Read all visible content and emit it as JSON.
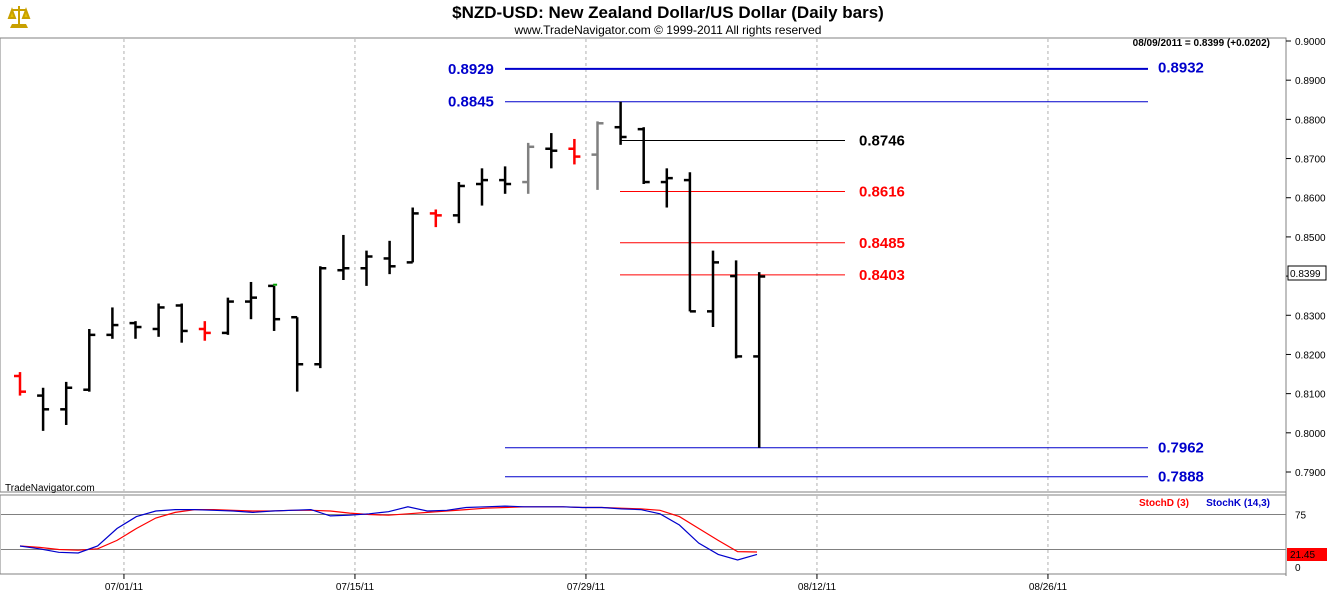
{
  "header": {
    "title": "$NZD-USD:  New Zealand Dollar/US Dollar  (Daily bars)",
    "subtitle": "www.TradeNavigator.com © 1999-2011 All rights reserved",
    "readout": "08/09/2011 = 0.8399 (+0.0202)",
    "brand": "TradeNavigator.com",
    "last_price": "0.8399"
  },
  "colors": {
    "bar_black": "#000000",
    "bar_red": "#ff0000",
    "bar_gray": "#808080",
    "bar_green": "#00a000",
    "level_blue": "#0000cc",
    "level_red": "#ff0000",
    "stoch_d": "#ff0000",
    "stoch_k": "#0000ff"
  },
  "chart_data": [
    {
      "type": "ohlc",
      "ylim": [
        0.787,
        0.9
      ],
      "y_ticks": [
        "0.9000",
        "0.8900",
        "0.8800",
        "0.8700",
        "0.8600",
        "0.8500",
        "0.8400",
        "0.8300",
        "0.8200",
        "0.8100",
        "0.8000",
        "0.7900"
      ],
      "y_tick_values": [
        0.9,
        0.89,
        0.88,
        0.87,
        0.86,
        0.85,
        0.84,
        0.83,
        0.82,
        0.81,
        0.8,
        0.79
      ],
      "x_ticks": [
        "07/01/11",
        "07/15/11",
        "07/29/11",
        "08/12/11",
        "08/26/11"
      ],
      "x_tick_index": [
        4.5,
        14.5,
        24.5,
        34.5,
        44.5
      ],
      "bars": [
        {
          "i": 0,
          "o": 0.8145,
          "h": 0.8155,
          "l": 0.8095,
          "c": 0.8105,
          "color": "red"
        },
        {
          "i": 1,
          "o": 0.8095,
          "h": 0.8115,
          "l": 0.8005,
          "c": 0.806,
          "color": "black"
        },
        {
          "i": 2,
          "o": 0.806,
          "h": 0.813,
          "l": 0.802,
          "c": 0.8115,
          "color": "black"
        },
        {
          "i": 3,
          "o": 0.811,
          "h": 0.8265,
          "l": 0.8105,
          "c": 0.825,
          "color": "black"
        },
        {
          "i": 4,
          "o": 0.825,
          "h": 0.832,
          "l": 0.824,
          "c": 0.8275,
          "color": "black"
        },
        {
          "i": 5,
          "o": 0.828,
          "h": 0.8285,
          "l": 0.824,
          "c": 0.827,
          "color": "black"
        },
        {
          "i": 6,
          "o": 0.8265,
          "h": 0.833,
          "l": 0.8245,
          "c": 0.832,
          "color": "black"
        },
        {
          "i": 7,
          "o": 0.8325,
          "h": 0.833,
          "l": 0.823,
          "c": 0.826,
          "color": "black"
        },
        {
          "i": 8,
          "o": 0.8265,
          "h": 0.8285,
          "l": 0.8235,
          "c": 0.8255,
          "color": "red"
        },
        {
          "i": 9,
          "o": 0.8255,
          "h": 0.8345,
          "l": 0.825,
          "c": 0.8335,
          "color": "black"
        },
        {
          "i": 10,
          "o": 0.8335,
          "h": 0.8385,
          "l": 0.829,
          "c": 0.8345,
          "color": "black"
        },
        {
          "i": 11,
          "o": 0.8375,
          "h": 0.8375,
          "l": 0.826,
          "c": 0.829,
          "color": "black"
        },
        {
          "i": 12,
          "o": 0.8295,
          "h": 0.8295,
          "l": 0.8105,
          "c": 0.8175,
          "color": "black"
        },
        {
          "i": 13,
          "o": 0.8175,
          "h": 0.8425,
          "l": 0.8165,
          "c": 0.842,
          "color": "black"
        },
        {
          "i": 14,
          "o": 0.8415,
          "h": 0.8505,
          "l": 0.839,
          "c": 0.842,
          "color": "black"
        },
        {
          "i": 15,
          "o": 0.842,
          "h": 0.8465,
          "l": 0.8375,
          "c": 0.845,
          "color": "black"
        },
        {
          "i": 16,
          "o": 0.8445,
          "h": 0.849,
          "l": 0.8405,
          "c": 0.8425,
          "color": "black"
        },
        {
          "i": 17,
          "o": 0.8435,
          "h": 0.8575,
          "l": 0.8435,
          "c": 0.856,
          "color": "black"
        },
        {
          "i": 18,
          "o": 0.856,
          "h": 0.857,
          "l": 0.8525,
          "c": 0.8555,
          "color": "red"
        },
        {
          "i": 19,
          "o": 0.8555,
          "h": 0.864,
          "l": 0.8535,
          "c": 0.863,
          "color": "black"
        },
        {
          "i": 20,
          "o": 0.8635,
          "h": 0.8675,
          "l": 0.858,
          "c": 0.8645,
          "color": "black"
        },
        {
          "i": 21,
          "o": 0.8645,
          "h": 0.868,
          "l": 0.861,
          "c": 0.8635,
          "color": "black"
        },
        {
          "i": 22,
          "o": 0.864,
          "h": 0.874,
          "l": 0.861,
          "c": 0.873,
          "color": "gray"
        },
        {
          "i": 23,
          "o": 0.8725,
          "h": 0.8765,
          "l": 0.8675,
          "c": 0.872,
          "color": "black"
        },
        {
          "i": 24,
          "o": 0.8725,
          "h": 0.875,
          "l": 0.8685,
          "c": 0.8705,
          "color": "red"
        },
        {
          "i": 25,
          "o": 0.871,
          "h": 0.8795,
          "l": 0.862,
          "c": 0.879,
          "color": "gray"
        },
        {
          "i": 26,
          "o": 0.878,
          "h": 0.8845,
          "l": 0.8735,
          "c": 0.8755,
          "color": "black"
        },
        {
          "i": 27,
          "o": 0.8775,
          "h": 0.878,
          "l": 0.8635,
          "c": 0.864,
          "color": "black"
        },
        {
          "i": 28,
          "o": 0.864,
          "h": 0.8675,
          "l": 0.8575,
          "c": 0.865,
          "color": "black"
        },
        {
          "i": 29,
          "o": 0.8645,
          "h": 0.8665,
          "l": 0.831,
          "c": 0.831,
          "color": "black"
        },
        {
          "i": 30,
          "o": 0.831,
          "h": 0.8465,
          "l": 0.827,
          "c": 0.8435,
          "color": "black"
        },
        {
          "i": 31,
          "o": 0.84,
          "h": 0.844,
          "l": 0.819,
          "c": 0.8195,
          "color": "black"
        },
        {
          "i": 32,
          "o": 0.8195,
          "h": 0.841,
          "l": 0.7962,
          "c": 0.8399,
          "color": "black"
        }
      ],
      "levels": [
        {
          "value": 0.8929,
          "label": "0.8929",
          "label_side": "left",
          "color": "blue",
          "span": "wide",
          "width": 2
        },
        {
          "value": 0.8932,
          "label": "0.8932",
          "label_side": "right",
          "color": "blue",
          "span": "none",
          "width": 0
        },
        {
          "value": 0.8845,
          "label": "0.8845",
          "label_side": "left",
          "color": "blue",
          "span": "wide",
          "width": 1
        },
        {
          "value": 0.8746,
          "label": "0.8746",
          "label_side": "right",
          "color": "black",
          "span": "short",
          "width": 1
        },
        {
          "value": 0.8616,
          "label": "0.8616",
          "label_side": "right",
          "color": "red",
          "span": "short",
          "width": 1
        },
        {
          "value": 0.8485,
          "label": "0.8485",
          "label_side": "right",
          "color": "red",
          "span": "short",
          "width": 1
        },
        {
          "value": 0.8403,
          "label": "0.8403",
          "label_side": "right",
          "color": "red",
          "span": "short",
          "width": 1
        },
        {
          "value": 0.7962,
          "label": "0.7962",
          "label_side": "right",
          "color": "blue",
          "span": "wide",
          "width": 1
        },
        {
          "value": 0.7888,
          "label": "0.7888",
          "label_side": "right",
          "color": "blue",
          "span": "wide",
          "width": 1
        }
      ]
    },
    {
      "type": "line",
      "ylim": [
        0,
        100
      ],
      "y_ticks": [
        "75",
        "0"
      ],
      "y_tick_values": [
        75,
        0
      ],
      "reference_lines": [
        75,
        25
      ],
      "last_value_label": "21.45",
      "series": [
        {
          "name": "StochD (3)",
          "color": "red",
          "values": [
            30,
            28,
            25,
            24,
            26,
            38,
            55,
            70,
            78,
            82,
            82,
            81,
            80,
            80,
            81,
            81,
            80,
            77,
            75,
            74,
            76,
            78,
            80,
            82,
            84,
            85,
            86,
            86,
            86,
            85,
            85,
            84,
            83,
            81,
            72,
            55,
            38,
            22,
            21.45
          ]
        },
        {
          "name": "StochK (14,3)",
          "color": "blue",
          "values": [
            30,
            26,
            21,
            20,
            30,
            55,
            72,
            80,
            82,
            82,
            81,
            80,
            78,
            80,
            81,
            82,
            73,
            74,
            76,
            79,
            86,
            80,
            81,
            85,
            86,
            87,
            86,
            86,
            86,
            85,
            85,
            83,
            82,
            76,
            60,
            34,
            18,
            10,
            18
          ]
        }
      ]
    }
  ]
}
